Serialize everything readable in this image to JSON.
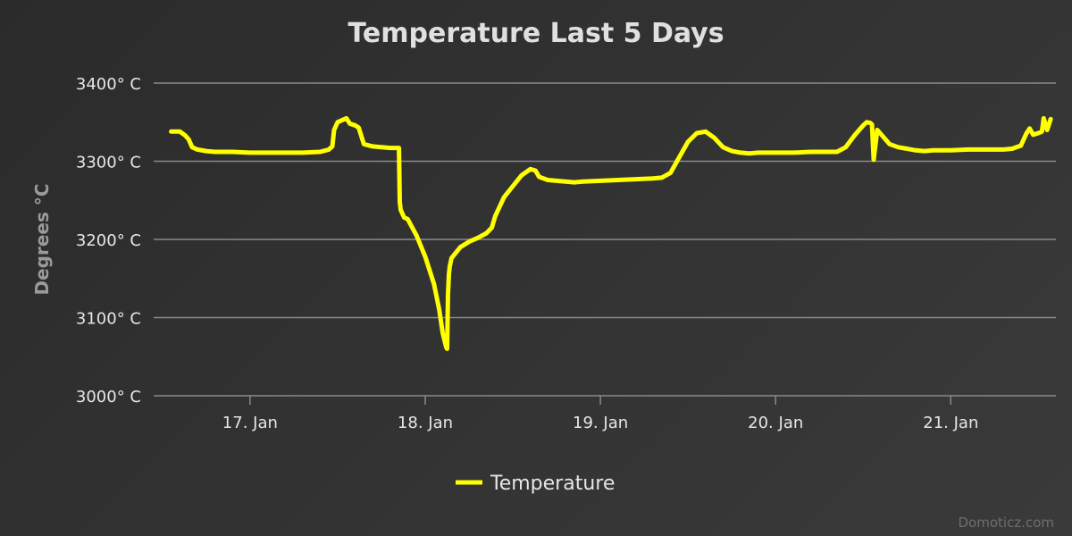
{
  "chart_data": {
    "type": "line",
    "title": "Temperature Last 5 Days",
    "ylabel": "Degrees °C",
    "ylim": [
      3000,
      3400
    ],
    "yticks": [
      3000,
      3100,
      3200,
      3300,
      3400
    ],
    "ytick_labels": [
      "3000° C",
      "3100° C",
      "3200° C",
      "3300° C",
      "3400° C"
    ],
    "xlim": [
      16.45,
      21.6
    ],
    "xticks": [
      17,
      18,
      19,
      20,
      21
    ],
    "xtick_labels": [
      "17. Jan",
      "18. Jan",
      "19. Jan",
      "20. Jan",
      "21. Jan"
    ],
    "grid": true,
    "legend_position": "bottom-center",
    "series": [
      {
        "name": "Temperature",
        "color": "#ffff00",
        "x": [
          16.55,
          16.6,
          16.63,
          16.65,
          16.67,
          16.7,
          16.75,
          16.8,
          16.9,
          17.0,
          17.1,
          17.2,
          17.3,
          17.4,
          17.45,
          17.47,
          17.48,
          17.5,
          17.52,
          17.55,
          17.57,
          17.6,
          17.62,
          17.65,
          17.7,
          17.75,
          17.8,
          17.85,
          17.855,
          17.86,
          17.88,
          17.9,
          17.95,
          18.0,
          18.05,
          18.08,
          18.1,
          18.12,
          18.125,
          18.13,
          18.135,
          18.14,
          18.15,
          18.2,
          18.25,
          18.3,
          18.35,
          18.38,
          18.4,
          18.45,
          18.5,
          18.55,
          18.6,
          18.63,
          18.65,
          18.7,
          18.8,
          18.85,
          18.9,
          19.0,
          19.1,
          19.2,
          19.3,
          19.35,
          19.4,
          19.45,
          19.5,
          19.55,
          19.6,
          19.65,
          19.7,
          19.75,
          19.8,
          19.85,
          19.9,
          20.0,
          20.1,
          20.2,
          20.3,
          20.35,
          20.4,
          20.45,
          20.5,
          20.52,
          20.54,
          20.55,
          20.56,
          20.58,
          20.6,
          20.65,
          20.7,
          20.75,
          20.8,
          20.85,
          20.9,
          21.0,
          21.1,
          21.2,
          21.3,
          21.35,
          21.4,
          21.43,
          21.45,
          21.47,
          21.5,
          21.52,
          21.53,
          21.55,
          21.57
        ],
        "values": [
          3338,
          3338,
          3333,
          3328,
          3318,
          3315,
          3313,
          3312,
          3312,
          3311,
          3311,
          3311,
          3311,
          3312,
          3315,
          3319,
          3340,
          3350,
          3352,
          3355,
          3348,
          3346,
          3343,
          3322,
          3319,
          3318,
          3317,
          3317,
          3248,
          3238,
          3228,
          3226,
          3205,
          3178,
          3143,
          3110,
          3080,
          3062,
          3060,
          3130,
          3155,
          3165,
          3176,
          3190,
          3197,
          3202,
          3208,
          3215,
          3230,
          3254,
          3268,
          3282,
          3290,
          3288,
          3280,
          3276,
          3274,
          3273,
          3274,
          3275,
          3276,
          3277,
          3278,
          3279,
          3285,
          3305,
          3325,
          3336,
          3338,
          3330,
          3318,
          3313,
          3311,
          3310,
          3311,
          3311,
          3311,
          3312,
          3312,
          3312,
          3318,
          3333,
          3346,
          3350,
          3349,
          3347,
          3302,
          3340,
          3335,
          3322,
          3318,
          3316,
          3314,
          3313,
          3314,
          3314,
          3315,
          3315,
          3315,
          3316,
          3320,
          3335,
          3342,
          3334,
          3336,
          3338,
          3355,
          3340,
          3354
        ]
      }
    ]
  },
  "credit": "Domoticz.com"
}
